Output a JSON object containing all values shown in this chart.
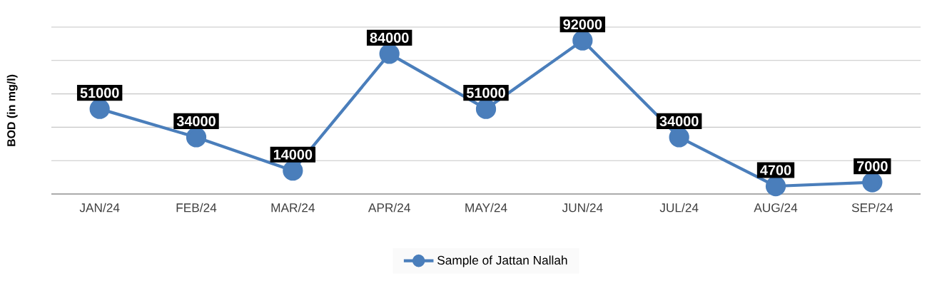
{
  "chart_data": {
    "type": "line",
    "ylabel": "BOD (in mg/l)",
    "categories": [
      "JAN/24",
      "FEB/24",
      "MAR/24",
      "APR/24",
      "MAY/24",
      "JUN/24",
      "JUL/24",
      "AUG/24",
      "SEP/24"
    ],
    "series": [
      {
        "name": "Sample of Jattan Nallah",
        "color": "#4a7ebb",
        "values": [
          51000,
          34000,
          14000,
          84000,
          51000,
          92000,
          34000,
          4700,
          7000
        ]
      }
    ],
    "ylim": [
      0,
      100000
    ],
    "yticks": [
      {
        "value": 0,
        "label": null
      },
      {
        "value": 20000,
        "label": null
      },
      {
        "value": 40000,
        "label": null
      },
      {
        "value": 60000,
        "label": null
      },
      {
        "value": 80000,
        "label": null
      },
      {
        "value": 100000,
        "label": null
      }
    ],
    "tick_labels": "x",
    "grid": "y",
    "legend": "bottom",
    "marker": "circle",
    "line_style": "solid",
    "data_labels": true
  }
}
